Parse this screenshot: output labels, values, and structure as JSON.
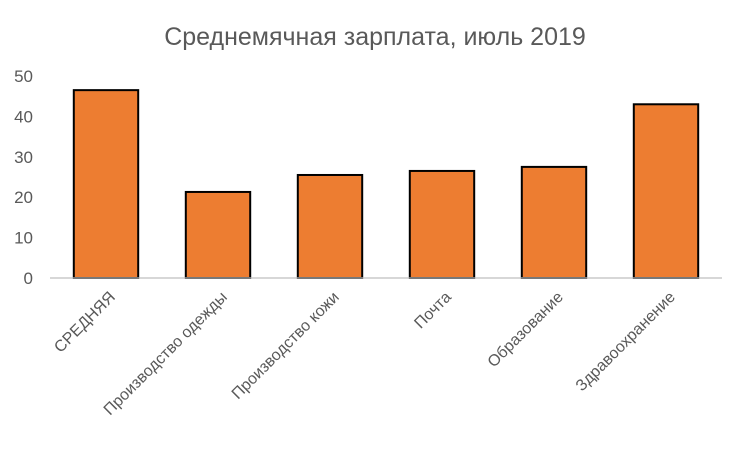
{
  "chart_data": {
    "type": "bar",
    "title": "Среднемячная зарплата, июль 2019",
    "xlabel": "",
    "ylabel": "",
    "categories": [
      "СРЕДНЯЯ",
      "Производство одежды",
      "Производство кожи",
      "Почта",
      "Образование",
      "Здравоохранение"
    ],
    "values": [
      46.5,
      21.3,
      25.5,
      26.5,
      27.5,
      43
    ],
    "ylim": [
      0,
      50
    ],
    "yticks": [
      0,
      10,
      20,
      30,
      40,
      50
    ],
    "grid": false,
    "legend": "none",
    "bar_color": "#ED7D31",
    "bar_outline": "#000000"
  }
}
